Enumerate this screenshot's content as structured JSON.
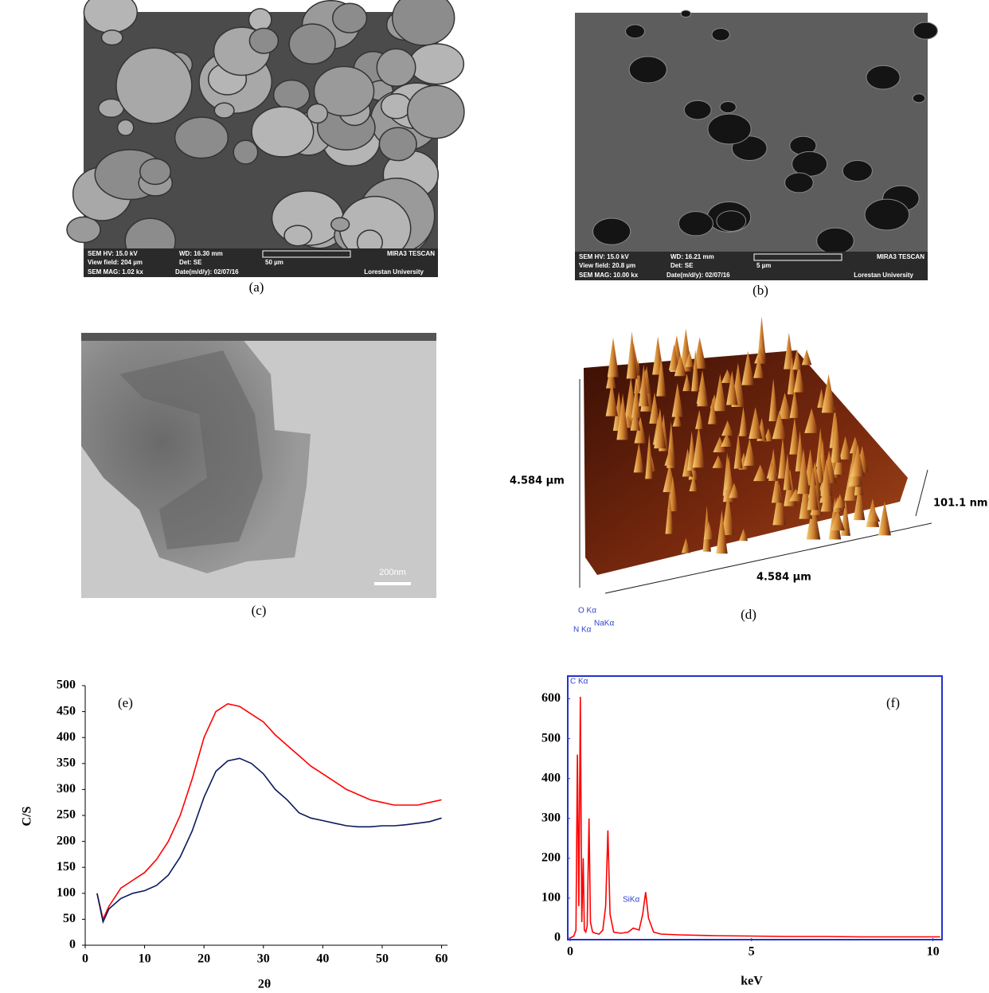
{
  "sem_a": {
    "caption": "(a)",
    "hv": "SEM HV: 15.0 kV",
    "wd": "WD: 16.30 mm",
    "brand": "MIRA3 TESCAN",
    "view": "View field: 204 µm",
    "det": "Det: SE",
    "scale": "50 µm",
    "mag": "SEM MAG: 1.02 kx",
    "date": "Date(m/d/y): 02/07/16",
    "univ": "Lorestan University"
  },
  "sem_b": {
    "caption": "(b)",
    "hv": "SEM HV: 15.0 kV",
    "wd": "WD: 16.21 mm",
    "brand": "MIRA3 TESCAN",
    "view": "View field: 20.8 µm",
    "det": "Det: SE",
    "scale": "5 µm",
    "mag": "SEM MAG: 10.00 kx",
    "date": "Date(m/d/y): 02/07/16",
    "univ": "Lorestan University"
  },
  "tem_c": {
    "caption": "(c)",
    "scale_bar": "200nm"
  },
  "afm_d": {
    "caption": "(d)",
    "y_size": "4.584 µm",
    "x_size": "4.584 µm",
    "z_size": "101.1 nm"
  },
  "chart_data": [
    {
      "type": "line",
      "annotation": "(e)",
      "x_label": "2θ",
      "y_label": "C/S",
      "xlim": [
        0,
        61
      ],
      "ylim": [
        0,
        500
      ],
      "xticks": [
        0,
        10,
        20,
        30,
        40,
        50,
        60
      ],
      "yticks": [
        0,
        50,
        100,
        150,
        200,
        250,
        300,
        350,
        400,
        450,
        500
      ],
      "x": [
        2,
        3,
        4,
        6,
        8,
        10,
        12,
        14,
        16,
        18,
        20,
        22,
        24,
        26,
        28,
        30,
        32,
        34,
        36,
        38,
        40,
        42,
        44,
        46,
        48,
        50,
        52,
        54,
        56,
        58,
        60
      ],
      "series": [
        {
          "color": "#ff0000",
          "values": [
            100,
            50,
            75,
            110,
            125,
            140,
            165,
            200,
            250,
            320,
            400,
            450,
            465,
            460,
            445,
            430,
            405,
            385,
            365,
            345,
            330,
            315,
            300,
            290,
            280,
            275,
            270,
            270,
            270,
            275,
            280
          ]
        },
        {
          "color": "#0a1a5c",
          "values": [
            100,
            45,
            70,
            90,
            100,
            105,
            115,
            135,
            170,
            220,
            285,
            335,
            355,
            360,
            350,
            330,
            300,
            280,
            255,
            245,
            240,
            235,
            230,
            228,
            228,
            230,
            230,
            232,
            235,
            238,
            245
          ]
        }
      ]
    },
    {
      "type": "line",
      "annotation": "(f)",
      "x_label": "keV",
      "xlim": [
        0,
        10.25
      ],
      "ylim": [
        0,
        657
      ],
      "xticks": [
        0,
        5,
        10
      ],
      "yticks": [
        0,
        100,
        200,
        300,
        400,
        500,
        600
      ],
      "x": [
        0,
        0.1,
        0.16,
        0.2,
        0.24,
        0.28,
        0.32,
        0.36,
        0.39,
        0.43,
        0.47,
        0.52,
        0.56,
        0.62,
        0.7,
        0.8,
        0.9,
        0.98,
        1.04,
        1.1,
        1.2,
        1.4,
        1.6,
        1.74,
        1.9,
        2.0,
        2.08,
        2.16,
        2.3,
        2.5,
        3,
        4,
        5,
        6,
        7,
        8,
        9,
        10,
        10.2
      ],
      "series": [
        {
          "color": "#ff0000",
          "values": [
            0,
            5,
            20,
            460,
            80,
            605,
            40,
            200,
            20,
            15,
            30,
            300,
            40,
            15,
            12,
            10,
            20,
            80,
            270,
            60,
            15,
            12,
            15,
            25,
            20,
            60,
            115,
            50,
            15,
            10,
            8,
            6,
            5,
            4,
            4,
            3,
            3,
            3,
            3
          ]
        }
      ],
      "peak_labels": [
        "C Kα",
        "O Kα",
        "N Kα",
        "NaKα",
        "SiKα"
      ]
    }
  ]
}
